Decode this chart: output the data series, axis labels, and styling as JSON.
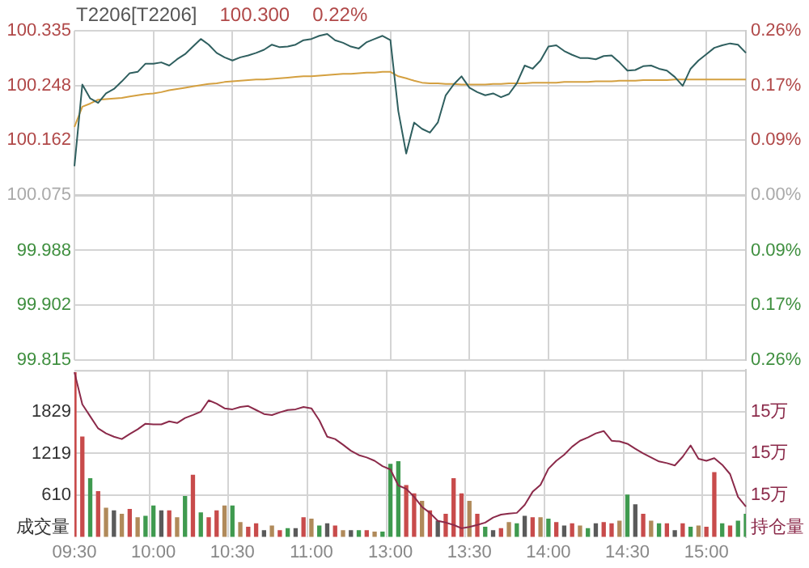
{
  "chart_data": [
    {
      "type": "line",
      "title": "T2206[T2206]",
      "annotations": [
        "100.300",
        "0.22%"
      ],
      "categories": [
        null,
        null,
        null,
        null,
        null,
        null,
        null,
        null,
        null,
        null,
        null,
        null,
        null,
        null,
        null,
        null,
        null,
        null,
        null,
        null,
        null,
        null,
        null,
        null,
        null,
        null,
        null,
        null,
        null,
        null,
        null,
        null,
        null,
        null,
        null,
        null,
        null,
        null,
        null,
        null,
        null,
        null,
        null,
        null,
        null,
        null,
        null,
        null,
        null,
        null,
        null,
        null,
        null,
        null,
        null,
        null,
        null,
        null,
        null,
        null,
        null,
        null,
        null,
        null,
        null,
        null,
        null,
        null,
        null,
        null,
        null,
        null,
        null,
        null,
        null,
        null,
        null,
        null,
        null,
        null,
        null,
        null,
        null,
        null,
        null,
        null
      ],
      "ylim": [
        99.815,
        100.335
      ],
      "yticks": [
        100.335,
        100.248,
        100.162,
        100.075,
        99.988,
        99.902,
        99.815
      ],
      "y2lim": [
        -0.26,
        0.26
      ],
      "y2ticks": [
        {
          "value": 0.26,
          "label": "0.26%"
        },
        {
          "value": 0.173,
          "label": "0.17%"
        },
        {
          "value": 0.087,
          "label": "0.09%"
        },
        {
          "value": 0,
          "label": "0.00%"
        },
        {
          "value": -0.087,
          "label": "0.09%"
        },
        {
          "value": -0.173,
          "label": "0.17%"
        },
        {
          "value": -0.26,
          "label": "0.26%"
        }
      ],
      "ref_lines": [
        {
          "axis": "y",
          "value": 100.075,
          "color": "#d0d0d0"
        }
      ],
      "grid": true,
      "legend": false,
      "tick_labels": "y",
      "series": [
        {
          "color": "#2f5f5f",
          "values": [
            100.121,
            100.25,
            100.228,
            100.221,
            100.236,
            100.243,
            100.255,
            100.268,
            100.27,
            100.283,
            100.283,
            100.285,
            100.28,
            100.29,
            100.298,
            100.31,
            100.322,
            100.313,
            100.3,
            100.293,
            100.288,
            100.293,
            100.296,
            100.3,
            100.305,
            100.313,
            100.309,
            100.31,
            100.313,
            100.32,
            100.322,
            100.327,
            100.33,
            100.32,
            100.316,
            100.31,
            100.307,
            100.317,
            100.322,
            100.327,
            100.32,
            100.208,
            100.141,
            100.19,
            100.18,
            100.174,
            100.19,
            100.233,
            100.25,
            100.263,
            100.245,
            100.238,
            100.233,
            100.236,
            100.23,
            100.235,
            100.252,
            100.28,
            100.275,
            100.288,
            100.31,
            100.312,
            100.303,
            100.297,
            100.292,
            100.292,
            100.29,
            100.295,
            100.296,
            100.285,
            100.272,
            100.273,
            100.279,
            100.28,
            100.275,
            100.272,
            100.262,
            100.248,
            100.275,
            100.288,
            100.298,
            100.308,
            100.312,
            100.315,
            100.313,
            100.3
          ]
        },
        {
          "color": "#d4a040",
          "values": [
            100.183,
            100.215,
            100.22,
            100.226,
            100.227,
            100.228,
            100.229,
            100.231,
            100.233,
            100.235,
            100.236,
            100.238,
            100.241,
            100.243,
            100.245,
            100.247,
            100.249,
            100.251,
            100.252,
            100.254,
            100.255,
            100.256,
            100.257,
            100.258,
            100.258,
            100.259,
            100.26,
            100.261,
            100.262,
            100.263,
            100.263,
            100.264,
            100.265,
            100.266,
            100.267,
            100.267,
            100.268,
            100.269,
            100.269,
            100.27,
            100.27,
            100.263,
            100.26,
            100.256,
            100.253,
            100.252,
            100.252,
            100.251,
            100.251,
            100.25,
            100.25,
            100.25,
            100.25,
            100.251,
            100.251,
            100.252,
            100.252,
            100.252,
            100.253,
            100.253,
            100.253,
            100.253,
            100.254,
            100.254,
            100.254,
            100.254,
            100.255,
            100.255,
            100.255,
            100.256,
            100.256,
            100.256,
            100.257,
            100.257,
            100.257,
            100.257,
            100.258,
            100.258,
            100.258,
            100.258,
            100.258,
            100.258,
            100.258,
            100.258,
            100.258,
            100.258
          ]
        }
      ]
    },
    {
      "type": "bar",
      "ylabel": "成交量",
      "y2label": "持仓量",
      "categories": [
        "09:30",
        null,
        null,
        null,
        null,
        null,
        null,
        null,
        null,
        null,
        "10:00",
        null,
        null,
        null,
        null,
        null,
        null,
        null,
        null,
        null,
        "10:30",
        null,
        null,
        null,
        null,
        null,
        null,
        null,
        null,
        null,
        "11:00",
        null,
        null,
        null,
        null,
        null,
        null,
        null,
        null,
        null,
        "13:00",
        null,
        null,
        null,
        null,
        null,
        null,
        null,
        null,
        null,
        "13:30",
        null,
        null,
        null,
        null,
        null,
        null,
        null,
        null,
        null,
        "14:00",
        null,
        null,
        null,
        null,
        null,
        null,
        null,
        null,
        null,
        "14:30",
        null,
        null,
        null,
        null,
        null,
        null,
        null,
        null,
        null,
        "15:00",
        null,
        null,
        null,
        null,
        null
      ],
      "ylim": [
        0,
        2440
      ],
      "yticks": [
        610,
        1219,
        1829
      ],
      "y2lim": [
        14.75,
        15.25
      ],
      "y2ticks": [
        {
          "value": 15.125,
          "label": "15万"
        },
        {
          "value": 15,
          "label": "15万"
        },
        {
          "value": 14.875,
          "label": "15万"
        }
      ],
      "grid": true,
      "legend": false,
      "series": [
        {
          "type": "bar",
          "values": [
            2400,
            1460,
            850,
            660,
            420,
            380,
            330,
            400,
            280,
            300,
            450,
            380,
            380,
            280,
            590,
            900,
            350,
            280,
            380,
            450,
            450,
            210,
            140,
            190,
            90,
            160,
            90,
            120,
            120,
            280,
            260,
            160,
            190,
            160,
            90,
            90,
            90,
            90,
            70,
            70,
            1060,
            1100,
            750,
            630,
            520,
            380,
            230,
            330,
            850,
            630,
            520,
            330,
            140,
            90,
            120,
            210,
            190,
            300,
            280,
            280,
            260,
            210,
            160,
            190,
            160,
            120,
            190,
            210,
            190,
            230,
            610,
            470,
            330,
            230,
            190,
            190,
            90,
            190,
            140,
            160,
            140,
            940,
            190,
            160,
            230,
            330
          ],
          "colors": [
            "#c84b4b",
            "#c84b4b",
            "#3f9a4f",
            "#c84b4b",
            "#b08a5a",
            "#5a5a5a",
            "#b08a5a",
            "#c84b4b",
            "#b08a5a",
            "#3f9a4f",
            "#3f9a4f",
            "#5a5a5a",
            "#c84b4b",
            "#b08a5a",
            "#3f9a4f",
            "#c84b4b",
            "#3f9a4f",
            "#c84b4b",
            "#c84b4b",
            "#b08a5a",
            "#3f9a4f",
            "#b08a5a",
            "#c84b4b",
            "#c84b4b",
            "#5a5a5a",
            "#b08a5a",
            "#c84b4b",
            "#3f9a4f",
            "#5a5a5a",
            "#c84b4b",
            "#b08a5a",
            "#3f9a4f",
            "#5a5a5a",
            "#c84b4b",
            "#b08a5a",
            "#5a5a5a",
            "#3f9a4f",
            "#c84b4b",
            "#b08a5a",
            "#3f9a4f",
            "#3f9a4f",
            "#3f9a4f",
            "#c84b4b",
            "#c84b4b",
            "#b08a5a",
            "#c84b4b",
            "#5a5a5a",
            "#c84b4b",
            "#c84b4b",
            "#c84b4b",
            "#b08a5a",
            "#c84b4b",
            "#3f9a4f",
            "#5a5a5a",
            "#c84b4b",
            "#b08a5a",
            "#3f9a4f",
            "#5a5a5a",
            "#c84b4b",
            "#b08a5a",
            "#3f9a4f",
            "#c84b4b",
            "#5a5a5a",
            "#c84b4b",
            "#b08a5a",
            "#3f9a4f",
            "#5a5a5a",
            "#c84b4b",
            "#c84b4b",
            "#b08a5a",
            "#3f9a4f",
            "#5a5a5a",
            "#c84b4b",
            "#b08a5a",
            "#3f9a4f",
            "#c84b4b",
            "#5a5a5a",
            "#c84b4b",
            "#3f9a4f",
            "#b08a5a",
            "#c84b4b",
            "#c84b4b",
            "#3f9a4f",
            "#c84b4b",
            "#3f9a4f",
            "#3f9a4f"
          ]
        },
        {
          "type": "line",
          "axis": "y2",
          "color": "#8b2a4a",
          "values": [
            15.243,
            15.147,
            15.111,
            15.075,
            15.06,
            15.05,
            15.043,
            15.058,
            15.072,
            15.089,
            15.087,
            15.087,
            15.096,
            15.091,
            15.106,
            15.115,
            15.125,
            15.159,
            15.149,
            15.135,
            15.132,
            15.139,
            15.142,
            15.13,
            15.118,
            15.115,
            15.123,
            15.13,
            15.132,
            15.139,
            15.135,
            15.099,
            15.05,
            15.043,
            15.026,
            15.008,
            14.995,
            14.988,
            14.978,
            14.962,
            14.952,
            14.904,
            14.894,
            14.87,
            14.84,
            14.822,
            14.798,
            14.793,
            14.786,
            14.776,
            14.78,
            14.786,
            14.793,
            14.808,
            14.817,
            14.82,
            14.822,
            14.846,
            14.885,
            14.906,
            14.954,
            14.978,
            14.996,
            15.02,
            15.038,
            15.048,
            15.06,
            15.067,
            15.038,
            15.036,
            15.029,
            15.014,
            15,
            14.988,
            14.976,
            14.971,
            14.964,
            14.99,
            15.024,
            14.984,
            14.978,
            14.986,
            14.966,
            14.938,
            14.87,
            14.841
          ]
        }
      ]
    }
  ]
}
